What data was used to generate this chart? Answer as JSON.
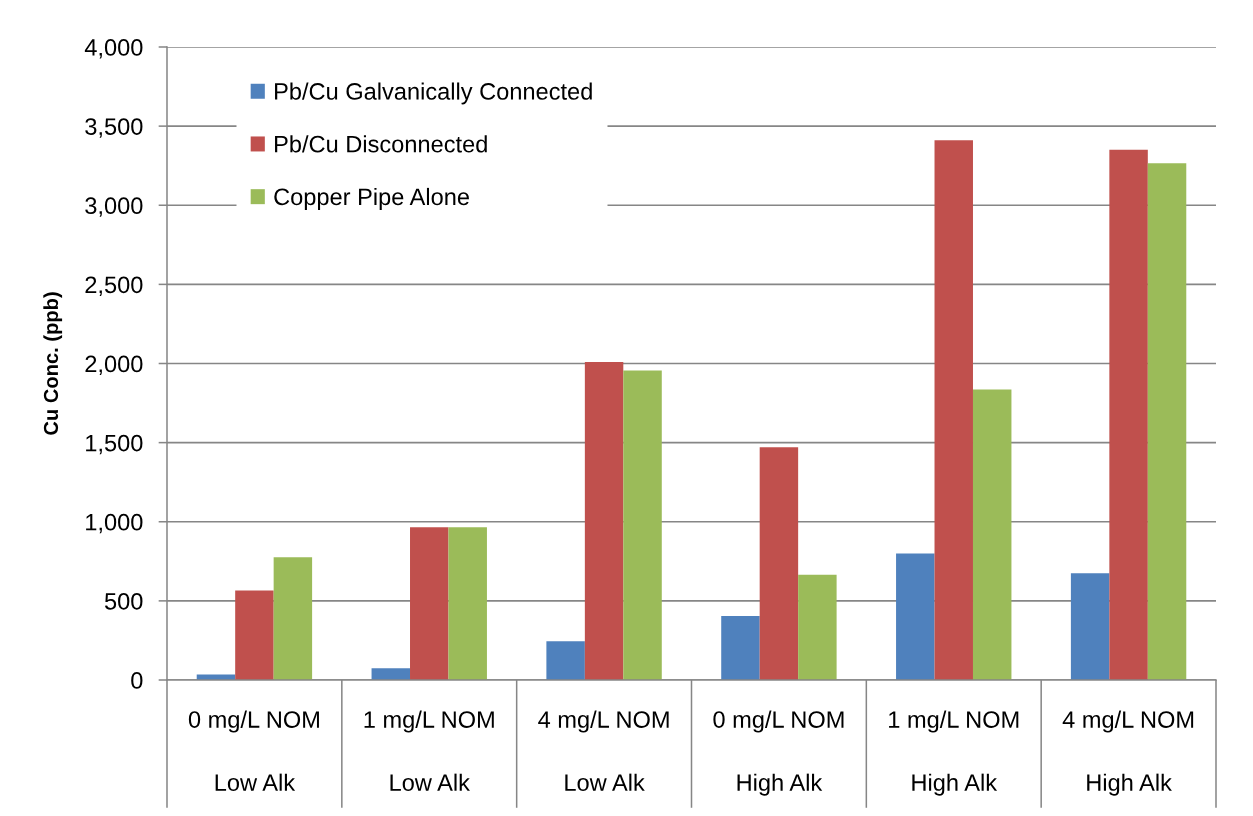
{
  "chart_data": {
    "type": "bar",
    "ylabel": "Cu Conc. (ppb)",
    "categories": [
      "0 mg/L NOM\nLow Alk",
      "1 mg/L NOM\nLow Alk",
      "4 mg/L NOM\nLow Alk",
      "0 mg/L NOM\nHigh Alk",
      "1 mg/L NOM\nHigh Alk",
      "4 mg/L NOM\nHigh Alk"
    ],
    "series": [
      {
        "name": "Pb/Cu Galvanically Connected",
        "color": "#4f81bd",
        "values": [
          35,
          75,
          245,
          405,
          800,
          675
        ]
      },
      {
        "name": "Pb/Cu Disconnected",
        "color": "#c0504d",
        "values": [
          565,
          965,
          2010,
          1470,
          3410,
          3350
        ]
      },
      {
        "name": "Copper Pipe Alone",
        "color": "#9bbb59",
        "values": [
          775,
          965,
          1955,
          665,
          1835,
          3265
        ]
      }
    ],
    "ylim": [
      0,
      4000
    ],
    "yticks": [
      0,
      500,
      {
        "value": 1000,
        "label": "1,000"
      },
      {
        "value": 1500,
        "label": "1,500"
      },
      {
        "value": 2000,
        "label": "2,000"
      },
      {
        "value": 2500,
        "label": "2,500"
      },
      {
        "value": 3000,
        "label": "3,000"
      },
      {
        "value": 3500,
        "label": "3,500"
      },
      {
        "value": 4000,
        "label": "4,000"
      }
    ],
    "grid": "y",
    "legend": "top left"
  }
}
